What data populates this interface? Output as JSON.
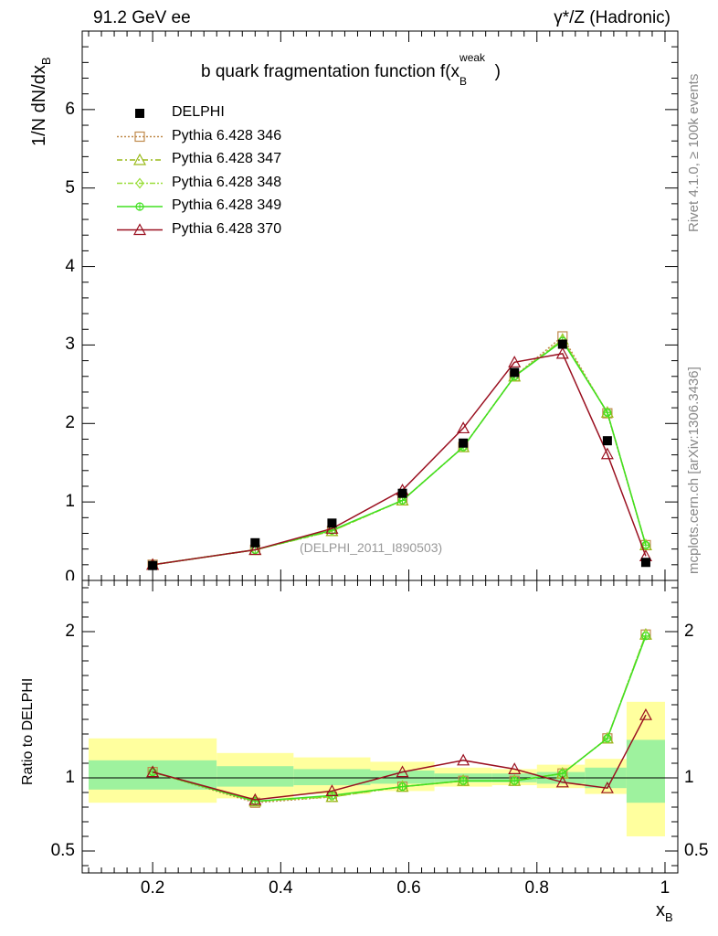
{
  "header": {
    "energy_label": "91.2 GeV ee",
    "process_label": "γ*/Z (Hadronic)",
    "rivet_label": "Rivet 4.1.0, ≥ 100k events",
    "mcplots_label": "mcplots.cern.ch [arXiv:1306.3436]"
  },
  "chart_data": {
    "type": "line",
    "title": "b quark fragmentation function f(x_B^weak)",
    "title_main": "b quark fragmentation function f(x",
    "title_sub": "B",
    "title_sup": "weak",
    "title_close": ")",
    "analysis_id": "(DELPHI_2011_I890503)",
    "ylabel_main": "1/N  dN/dx",
    "ylabel_sub": "B",
    "ylabel_ratio": "Ratio to DELPHI",
    "xlabel_main": "x",
    "xlabel_sub": "B",
    "xlim": [
      0.09,
      1.02
    ],
    "ylim": [
      0,
      7
    ],
    "ratio_ylim": [
      0.35,
      2.35
    ],
    "x_ticks": [
      0.2,
      0.4,
      0.6,
      0.8,
      1
    ],
    "x_tick_labels": [
      "0.2",
      "0.4",
      "0.6",
      "0.8",
      "1"
    ],
    "y_ticks": [
      0,
      1,
      2,
      3,
      4,
      5,
      6
    ],
    "y_tick_labels": [
      "0",
      "1",
      "2",
      "3",
      "4",
      "5",
      "6"
    ],
    "ratio_ticks": [
      0.5,
      1,
      2
    ],
    "ratio_tick_labels": [
      "0.5",
      "1",
      "2"
    ],
    "bins": [
      [
        0.1,
        0.3
      ],
      [
        0.3,
        0.42
      ],
      [
        0.42,
        0.54
      ],
      [
        0.54,
        0.64
      ],
      [
        0.64,
        0.73
      ],
      [
        0.73,
        0.8
      ],
      [
        0.8,
        0.875
      ],
      [
        0.875,
        0.94
      ],
      [
        0.94,
        1.0
      ]
    ],
    "x": [
      0.2,
      0.36,
      0.48,
      0.59,
      0.685,
      0.765,
      0.84,
      0.91,
      0.97
    ],
    "data": {
      "name": "DELPHI",
      "values": [
        0.19,
        0.48,
        0.73,
        1.11,
        1.75,
        2.65,
        3.01,
        1.78,
        0.23
      ]
    },
    "green_band": [
      [
        0.92,
        1.12
      ],
      [
        0.94,
        1.08
      ],
      [
        0.95,
        1.06
      ],
      [
        0.96,
        1.05
      ],
      [
        0.97,
        1.03
      ],
      [
        0.97,
        1.03
      ],
      [
        0.96,
        1.04
      ],
      [
        0.93,
        1.07
      ],
      [
        0.83,
        1.26
      ]
    ],
    "yellow_band": [
      [
        0.83,
        1.27
      ],
      [
        0.86,
        1.17
      ],
      [
        0.89,
        1.14
      ],
      [
        0.91,
        1.11
      ],
      [
        0.94,
        1.07
      ],
      [
        0.95,
        1.06
      ],
      [
        0.93,
        1.09
      ],
      [
        0.89,
        1.13
      ],
      [
        0.6,
        1.52
      ]
    ],
    "series": [
      {
        "name": "Pythia 6.428 346",
        "color": "#c08a4c",
        "marker": "square-open",
        "dash": "2,2",
        "values": [
          0.2,
          0.39,
          0.63,
          1.02,
          1.7,
          2.6,
          3.11,
          2.13,
          0.45
        ],
        "ratio": [
          1.04,
          0.83,
          0.87,
          0.94,
          0.98,
          0.98,
          1.03,
          1.27,
          1.98
        ]
      },
      {
        "name": "Pythia 6.428 347",
        "color": "#9aba1a",
        "marker": "triangle-open",
        "dash": "6,3,2,3",
        "values": [
          0.2,
          0.39,
          0.63,
          1.02,
          1.7,
          2.6,
          3.07,
          2.14,
          0.45
        ],
        "ratio": [
          1.04,
          0.84,
          0.87,
          0.94,
          0.98,
          0.98,
          1.03,
          1.27,
          1.98
        ]
      },
      {
        "name": "Pythia 6.428 348",
        "color": "#9ade3a",
        "marker": "diamond-open",
        "dash": "6,2,2,2",
        "values": [
          0.2,
          0.39,
          0.63,
          1.02,
          1.7,
          2.6,
          3.07,
          2.14,
          0.45
        ],
        "ratio": [
          1.04,
          0.84,
          0.87,
          0.94,
          0.98,
          0.98,
          1.03,
          1.27,
          1.98
        ]
      },
      {
        "name": "Pythia 6.428 349",
        "color": "#40e020",
        "marker": "circle-cross",
        "dash": "",
        "values": [
          0.2,
          0.39,
          0.64,
          1.02,
          1.7,
          2.6,
          3.05,
          2.14,
          0.45
        ],
        "ratio": [
          1.04,
          0.84,
          0.88,
          0.94,
          0.98,
          0.98,
          1.03,
          1.27,
          1.97
        ]
      },
      {
        "name": "Pythia 6.428 370",
        "color": "#9a1020",
        "marker": "triangle-open",
        "dash": "",
        "values": [
          0.2,
          0.39,
          0.66,
          1.15,
          1.94,
          2.78,
          2.89,
          1.61,
          0.31
        ],
        "ratio": [
          1.04,
          0.85,
          0.91,
          1.04,
          1.12,
          1.06,
          0.97,
          0.93,
          1.43
        ]
      }
    ]
  }
}
